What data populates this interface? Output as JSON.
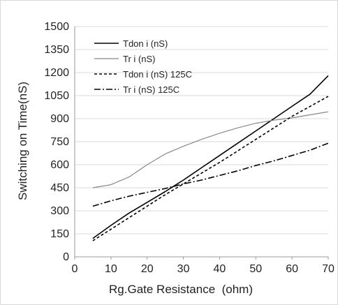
{
  "chart_data": {
    "type": "line",
    "title": "",
    "xlabel": "Rg.Gate Resistance  (ohm)",
    "ylabel": "Switching on Time(nS)",
    "xlim": [
      0,
      70
    ],
    "ylim": [
      0,
      1500
    ],
    "x_ticks": [
      0,
      10,
      20,
      30,
      40,
      50,
      60,
      70
    ],
    "y_ticks": [
      0,
      150,
      300,
      450,
      600,
      750,
      900,
      1050,
      1200,
      1350,
      1500
    ],
    "grid": "horizontal",
    "legend_position": "top-left",
    "series": [
      {
        "name": "Tdon i (nS)",
        "style": "solid",
        "color": "#000000",
        "x": [
          5,
          10,
          15,
          20,
          25,
          30,
          35,
          40,
          45,
          50,
          55,
          60,
          65,
          70
        ],
        "values": [
          120,
          205,
          285,
          355,
          425,
          500,
          580,
          660,
          740,
          820,
          900,
          980,
          1060,
          1180
        ]
      },
      {
        "name": "Tr i (nS)",
        "style": "solid",
        "color": "#888888",
        "x": [
          5,
          10,
          15,
          20,
          25,
          30,
          35,
          40,
          45,
          50,
          55,
          60,
          65,
          70
        ],
        "values": [
          450,
          470,
          520,
          600,
          670,
          720,
          765,
          805,
          840,
          870,
          890,
          905,
          925,
          945
        ]
      },
      {
        "name": "Tdon i (nS) 125C",
        "style": "dashed",
        "color": "#000000",
        "x": [
          5,
          10,
          15,
          20,
          25,
          30,
          35,
          40,
          45,
          50,
          55,
          60,
          65,
          70
        ],
        "values": [
          105,
          180,
          255,
          330,
          405,
          475,
          545,
          615,
          690,
          765,
          840,
          915,
          980,
          1045
        ]
      },
      {
        "name": "Tr i (nS) 125C",
        "style": "dashdot",
        "color": "#000000",
        "x": [
          5,
          10,
          15,
          20,
          25,
          30,
          35,
          40,
          45,
          50,
          55,
          60,
          65,
          70
        ],
        "values": [
          330,
          365,
          395,
          420,
          445,
          475,
          500,
          530,
          560,
          595,
          625,
          660,
          695,
          740
        ]
      }
    ]
  }
}
